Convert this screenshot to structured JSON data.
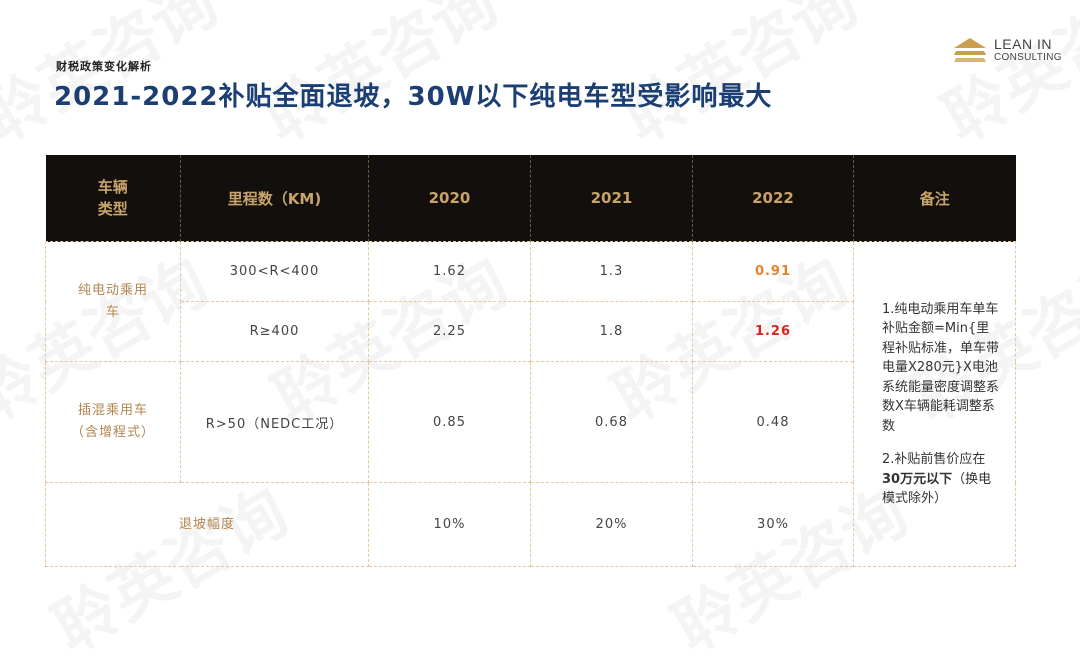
{
  "section_label": "财税政策变化解析",
  "title": "2021-2022补贴全面退坡，30W以下纯电车型受影响最大",
  "logo": {
    "line1": "LEAN IN",
    "line2": "CONSULTING",
    "watermark": "聆英咨询"
  },
  "table": {
    "headers": [
      "车辆\n类型",
      "里程数（KM)",
      "2020",
      "2021",
      "2022",
      "备注"
    ],
    "rows": [
      {
        "category": "纯电动乘用\n车",
        "range": "300<R<400",
        "values": [
          "1.62",
          "1.3",
          "0.91"
        ]
      },
      {
        "range": "R≥400",
        "values": [
          "2.25",
          "1.8",
          "1.26"
        ]
      },
      {
        "category": "插混乘用车\n（含增程式）",
        "range": "R>50（NEDC工况）",
        "values": [
          "0.85",
          "0.68",
          "0.48"
        ]
      },
      {
        "category": "退坡幅度",
        "values": [
          "10%",
          "20%",
          "30%"
        ]
      }
    ],
    "highlight_colors": {
      "orange": "#e8822a",
      "red": "#d9241e"
    },
    "note": {
      "p1": "1.纯电动乘用车单车补贴金额=Min{里程补贴标准，单车带电量X280元}X电池系统能量密度调整系数X车辆能耗调整系数",
      "p2_before": "2.补贴前售价应在",
      "p2_bold": "30万元以下",
      "p2_after": "（换电模式除外）"
    }
  }
}
